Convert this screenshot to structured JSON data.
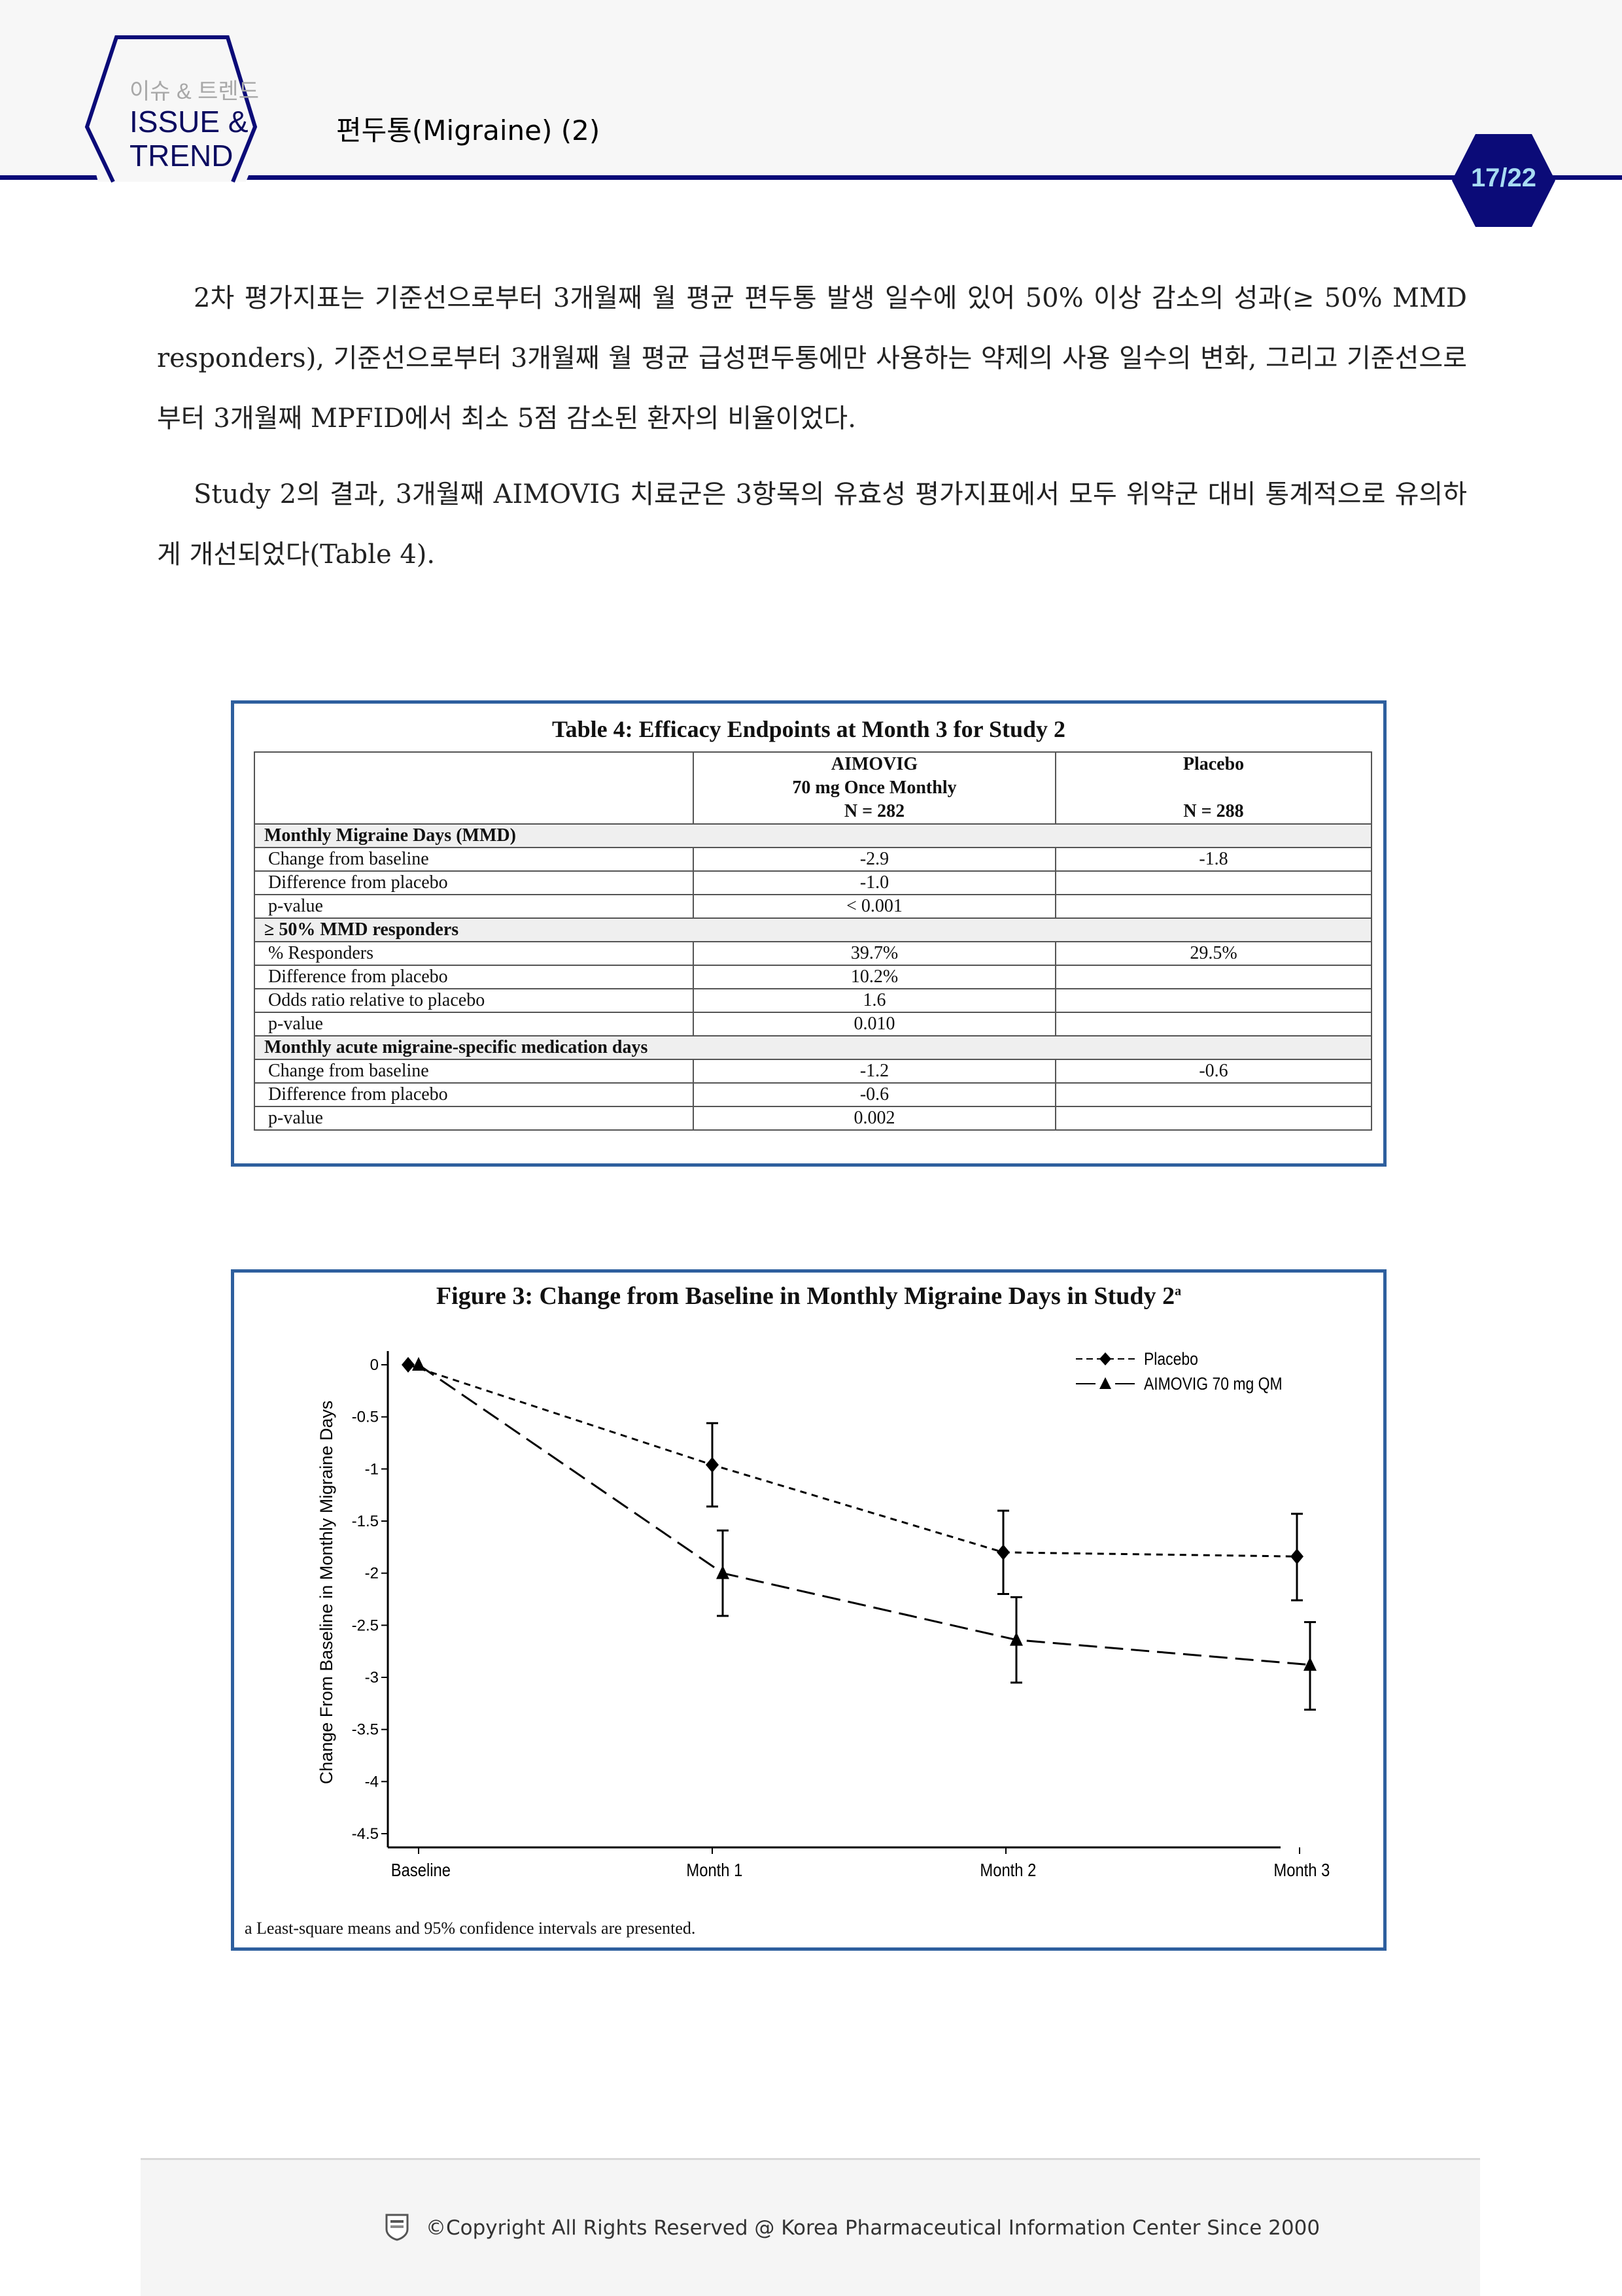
{
  "header": {
    "logo_ko": "이슈 & 트렌드",
    "logo_en_line1": "ISSUE &",
    "logo_en_line2": "TREND",
    "title": "편두통(Migraine) (2)",
    "page": "17/22",
    "accent": "#0b0b78"
  },
  "body": {
    "para1": "2차 평가지표는 기준선으로부터 3개월째 월 평균 편두통 발생 일수에 있어 50% 이상 감소의 성과(≥ 50% MMD responders), 기준선으로부터 3개월째 월 평균 급성편두통에만 사용하는 약제의 사용 일수의 변화, 그리고 기준선으로부터 3개월째 MPFID에서 최소 5점 감소된 환자의 비율이었다.",
    "para2": "Study 2의 결과, 3개월째 AIMOVIG 치료군은 3항목의 유효성 평가지표에서 모두 위약군 대비 통계적으로 유의하게 개선되었다(Table 4)."
  },
  "table": {
    "title": "Table 4: Efficacy Endpoints at Month 3 for Study 2",
    "col1": [
      "AIMOVIG",
      "70 mg Once Monthly",
      "N = 282"
    ],
    "col2": [
      "Placebo",
      "",
      "N = 288"
    ],
    "rows": [
      {
        "type": "sec",
        "label": "Monthly Migraine Days (MMD)"
      },
      {
        "label": "Change from baseline",
        "a": "-2.9",
        "p": "-1.8"
      },
      {
        "label": "Difference from placebo",
        "a": "-1.0",
        "p": ""
      },
      {
        "label": "p-value",
        "a": "< 0.001",
        "p": ""
      },
      {
        "type": "sec",
        "label": "≥ 50% MMD responders"
      },
      {
        "label": "% Responders",
        "a": "39.7%",
        "p": "29.5%"
      },
      {
        "label": "Difference from placebo",
        "a": "10.2%",
        "p": ""
      },
      {
        "label": "Odds ratio relative to placebo",
        "a": "1.6",
        "p": ""
      },
      {
        "label": "p-value",
        "a": "0.010",
        "p": ""
      },
      {
        "type": "sec",
        "label": "Monthly acute migraine-specific medication days"
      },
      {
        "label": "Change from baseline",
        "a": "-1.2",
        "p": "-0.6"
      },
      {
        "label": "Difference from placebo",
        "a": "-0.6",
        "p": ""
      },
      {
        "label": "p-value",
        "a": "0.002",
        "p": ""
      }
    ]
  },
  "chart_data": {
    "type": "line",
    "title": "Figure 3: Change from Baseline in Monthly Migraine Days in Study 2",
    "title_superscript": "a",
    "ylabel": "Change From Baseline in Monthly Migraine Days",
    "xlabel": "",
    "categories": [
      "Baseline",
      "Month 1",
      "Month 2",
      "Month 3"
    ],
    "yticks": [
      "0",
      "-0.5",
      "-1",
      "-1.5",
      "-2",
      "-2.5",
      "-3",
      "-3.5",
      "-4",
      "-4.5"
    ],
    "ylim": [
      -4.5,
      0
    ],
    "legend_placement": "top-right",
    "series": [
      {
        "name": "Placebo",
        "marker": "diamond",
        "dash": "short",
        "values": [
          0,
          -0.96,
          -1.8,
          -1.84
        ],
        "ci_upper": [
          0,
          -0.56,
          -1.4,
          -1.43
        ],
        "ci_lower": [
          0,
          -1.36,
          -2.2,
          -2.26
        ]
      },
      {
        "name": "AIMOVIG 70 mg QM",
        "marker": "triangle",
        "dash": "long",
        "values": [
          0,
          -2.0,
          -2.64,
          -2.88
        ],
        "ci_upper": [
          0,
          -1.59,
          -2.23,
          -2.47
        ],
        "ci_lower": [
          0,
          -2.41,
          -3.05,
          -3.31
        ]
      }
    ],
    "footnote": "a Least-square means and 95% confidence intervals are presented."
  },
  "footer": {
    "text": "©Copyright All Rights Reserved @ Korea Pharmaceutical Information Center Since 2000"
  }
}
